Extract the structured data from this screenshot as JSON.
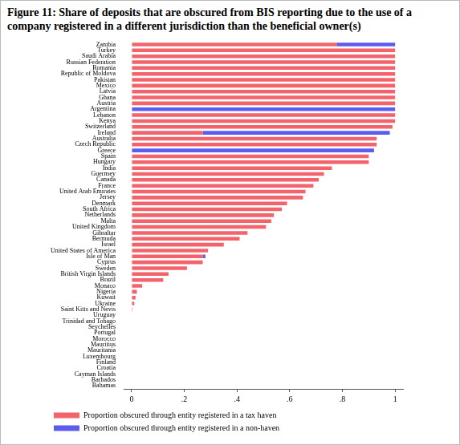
{
  "chart_data": {
    "type": "bar",
    "orientation": "horizontal",
    "stacked": true,
    "grid": false,
    "legend": "bottom",
    "title": "Figure 11: Share of deposits that are obscured from BIS reporting due to the use of a company registered in a different jurisdiction than the beneficial owner(s)",
    "categories": [
      "Zambia",
      "Turkey",
      "Saudi Arabia",
      "Russian Federation",
      "Romania",
      "Republic of Moldova",
      "Pakistan",
      "Mexico",
      "Latvia",
      "Ghana",
      "Austria",
      "Argentina",
      "Lebanon",
      "Kenya",
      "Switzerland",
      "Ireland",
      "Australia",
      "Czech Republic",
      "Greece",
      "Spain",
      "Hungary",
      "India",
      "Guernsey",
      "Canada",
      "France",
      "United Arab Emirates",
      "Jersey",
      "Denmark",
      "South Africa",
      "Netherlands",
      "Malta",
      "United Kingdom",
      "Gibraltar",
      "Bermuda",
      "Israel",
      "United States of America",
      "Isle of Man",
      "Cyprus",
      "Sweden",
      "British Virgin Islands",
      "Brazil",
      "Monaco",
      "Nigeria",
      "Kuwait",
      "Ukraine",
      "Saint Kitts and Nevis",
      "Uruguay",
      "Trinidad and Tobago",
      "Seychelles",
      "Portugal",
      "Morocco",
      "Mauritius",
      "Mauritania",
      "Luxembourg",
      "Finland",
      "Croatia",
      "Cayman Islands",
      "Barbados",
      "Bahamas"
    ],
    "series": [
      {
        "name": "Proportion obscured through entity registered in a tax haven",
        "color": "#f2636b",
        "values": [
          0.78,
          1,
          1,
          1,
          1,
          1,
          1,
          1,
          1,
          1,
          1,
          0,
          1,
          1,
          0.99,
          0.27,
          0.93,
          0.93,
          0,
          0.9,
          0.9,
          0.76,
          0.73,
          0.71,
          0.69,
          0.66,
          0.65,
          0.59,
          0.57,
          0.54,
          0.53,
          0.51,
          0.44,
          0.41,
          0.35,
          0.29,
          0.27,
          0.27,
          0.21,
          0.14,
          0.12,
          0.04,
          0.02,
          0.015,
          0.01,
          0.003,
          0,
          0,
          0,
          0,
          0,
          0,
          0,
          0,
          0,
          0,
          0,
          0,
          0
        ]
      },
      {
        "name": "Proportion obscured through entity registered in a non-haven",
        "color": "#5b5bf0",
        "values": [
          0.22,
          0,
          0,
          0,
          0,
          0,
          0,
          0,
          0,
          0,
          0,
          1,
          0,
          0,
          0,
          0.71,
          0,
          0,
          0.92,
          0,
          0,
          0,
          0,
          0,
          0,
          0,
          0,
          0,
          0,
          0,
          0,
          0,
          0,
          0,
          0,
          0,
          0.01,
          0,
          0,
          0,
          0,
          0,
          0,
          0,
          0,
          0,
          0,
          0,
          0,
          0,
          0,
          0,
          0,
          0,
          0,
          0,
          0,
          0,
          0
        ]
      }
    ],
    "xlim": [
      -0.03,
      1.03
    ],
    "xticks": [
      0,
      {
        "value": 0.2,
        "label": ".2"
      },
      {
        "value": 0.4,
        "label": ".4"
      },
      {
        "value": 0.6,
        "label": ".6"
      },
      {
        "value": 0.8,
        "label": ".8"
      },
      1
    ]
  }
}
